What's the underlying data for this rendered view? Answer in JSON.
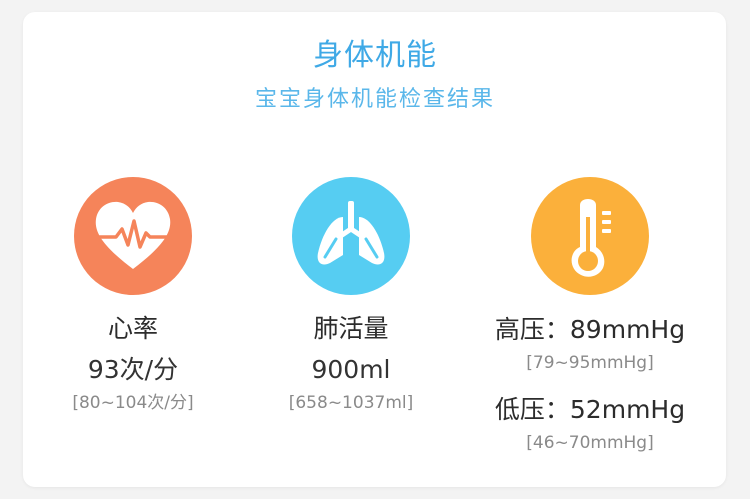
{
  "header": {
    "title": "身体机能",
    "subtitle": "宝宝身体机能检查结果"
  },
  "colors": {
    "title": "#3fa9e6",
    "heart_circle": "#f5845a",
    "lung_circle": "#56cdf2",
    "temp_circle": "#fbb03b"
  },
  "metrics": {
    "heart_rate": {
      "icon": "heart-pulse-icon",
      "label": "心率",
      "value": "93次/分",
      "range": "[80~104次/分]"
    },
    "lung_capacity": {
      "icon": "lungs-icon",
      "label": "肺活量",
      "value": "900ml",
      "range": "[658~1037ml]"
    },
    "blood_pressure": {
      "icon": "thermometer-icon",
      "systolic_label": "高压：89mmHg",
      "systolic_range": "[79~95mmHg]",
      "diastolic_label": "低压：52mmHg",
      "diastolic_range": "[46~70mmHg]"
    }
  }
}
